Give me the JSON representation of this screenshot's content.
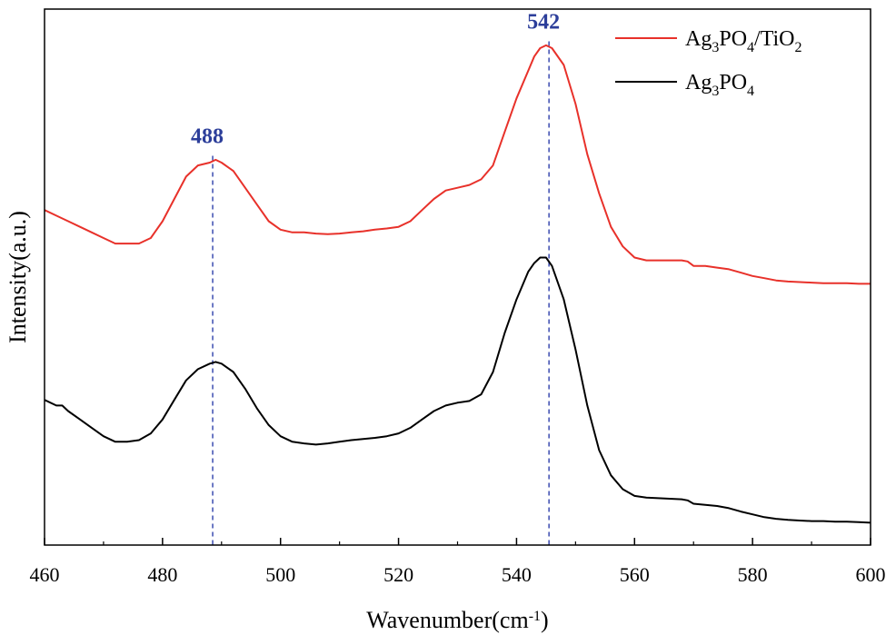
{
  "chart_data": {
    "type": "line",
    "xlabel": "Wavenumber(cm",
    "xlabel_sup": "-1",
    "xlabel_tail": ")",
    "ylabel": "Intensity(a.u.)",
    "xlim": [
      460,
      600
    ],
    "x_ticks": [
      460,
      480,
      500,
      520,
      540,
      560,
      580,
      600
    ],
    "y_ticks_labeled": false,
    "grid": false,
    "legend_position": "top-right",
    "series": [
      {
        "name": "Ag3PO4/TiO2",
        "legend_parts": [
          {
            "t": "Ag",
            "sub": false
          },
          {
            "t": "3",
            "sub": true
          },
          {
            "t": "PO",
            "sub": false
          },
          {
            "t": "4",
            "sub": true
          },
          {
            "t": "/TiO",
            "sub": false
          },
          {
            "t": "2",
            "sub": true
          }
        ],
        "color": "#e8312a",
        "x": [
          460,
          462,
          464,
          466,
          468,
          470,
          472,
          474,
          476,
          478,
          480,
          482,
          484,
          486,
          488,
          489,
          490,
          492,
          494,
          496,
          498,
          500,
          502,
          504,
          506,
          508,
          510,
          512,
          514,
          516,
          518,
          520,
          522,
          524,
          526,
          528,
          530,
          532,
          534,
          536,
          538,
          540,
          542,
          543,
          544,
          545,
          546,
          548,
          550,
          552,
          554,
          556,
          558,
          560,
          562,
          564,
          566,
          568,
          569,
          570,
          572,
          574,
          576,
          578,
          580,
          582,
          584,
          586,
          588,
          590,
          592,
          594,
          596,
          598,
          600
        ],
        "y": [
          0.54,
          0.53,
          0.52,
          0.51,
          0.5,
          0.49,
          0.48,
          0.48,
          0.48,
          0.49,
          0.52,
          0.56,
          0.6,
          0.62,
          0.625,
          0.63,
          0.625,
          0.61,
          0.58,
          0.55,
          0.52,
          0.505,
          0.5,
          0.5,
          0.498,
          0.497,
          0.498,
          0.5,
          0.502,
          0.505,
          0.507,
          0.51,
          0.52,
          0.54,
          0.56,
          0.575,
          0.58,
          0.585,
          0.595,
          0.62,
          0.68,
          0.74,
          0.79,
          0.815,
          0.83,
          0.835,
          0.83,
          0.8,
          0.73,
          0.64,
          0.57,
          0.51,
          0.475,
          0.455,
          0.45,
          0.45,
          0.45,
          0.45,
          0.448,
          0.44,
          0.44,
          0.437,
          0.434,
          0.428,
          0.422,
          0.418,
          0.414,
          0.412,
          0.411,
          0.41,
          0.409,
          0.409,
          0.409,
          0.408,
          0.408
        ]
      },
      {
        "name": "Ag3PO4",
        "legend_parts": [
          {
            "t": "Ag",
            "sub": false
          },
          {
            "t": "3",
            "sub": true
          },
          {
            "t": "PO",
            "sub": false
          },
          {
            "t": "4",
            "sub": true
          }
        ],
        "color": "#000000",
        "x": [
          460,
          462,
          463,
          464,
          466,
          468,
          470,
          472,
          474,
          476,
          478,
          480,
          482,
          484,
          486,
          488,
          489,
          490,
          492,
          494,
          496,
          498,
          500,
          502,
          504,
          506,
          508,
          510,
          512,
          514,
          516,
          518,
          520,
          522,
          524,
          526,
          528,
          530,
          532,
          534,
          536,
          538,
          540,
          542,
          543,
          544,
          545,
          546,
          548,
          550,
          552,
          554,
          556,
          558,
          560,
          562,
          564,
          566,
          568,
          569,
          570,
          572,
          574,
          576,
          578,
          580,
          582,
          584,
          586,
          588,
          590,
          592,
          594,
          596,
          598,
          600
        ],
        "y": [
          0.2,
          0.19,
          0.19,
          0.18,
          0.165,
          0.15,
          0.135,
          0.125,
          0.125,
          0.128,
          0.14,
          0.165,
          0.2,
          0.235,
          0.255,
          0.265,
          0.268,
          0.265,
          0.25,
          0.22,
          0.185,
          0.155,
          0.135,
          0.125,
          0.122,
          0.12,
          0.122,
          0.125,
          0.128,
          0.13,
          0.132,
          0.135,
          0.14,
          0.15,
          0.165,
          0.18,
          0.19,
          0.195,
          0.198,
          0.21,
          0.25,
          0.32,
          0.38,
          0.43,
          0.445,
          0.455,
          0.455,
          0.44,
          0.38,
          0.29,
          0.19,
          0.11,
          0.065,
          0.04,
          0.028,
          0.025,
          0.024,
          0.023,
          0.022,
          0.02,
          0.014,
          0.012,
          0.01,
          0.006,
          0.0,
          -0.005,
          -0.01,
          -0.013,
          -0.015,
          -0.016,
          -0.017,
          -0.017,
          -0.018,
          -0.018,
          -0.019,
          -0.02
        ]
      }
    ],
    "peaks": [
      {
        "label": "488",
        "x": 488.5
      },
      {
        "label": "542",
        "x": 545.5
      }
    ],
    "y_range": [
      -0.06,
      0.9
    ]
  }
}
